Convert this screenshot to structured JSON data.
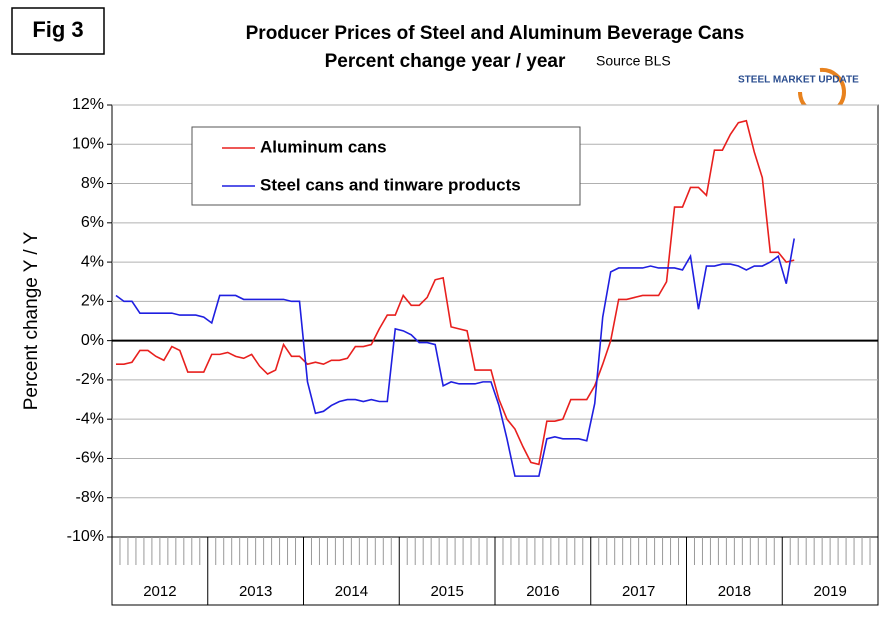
{
  "fig_label": "Fig 3",
  "logo": "STEEL MARKET UPDATE",
  "chart_data": {
    "type": "line",
    "title": "Producer Prices of Steel and Aluminum Beverage Cans",
    "subtitle": "Percent change year / year",
    "source": "Source BLS",
    "y_label": "Percent change Y / Y",
    "categories": [
      null,
      null,
      null,
      null,
      null,
      null,
      "2012",
      null,
      null,
      null,
      null,
      null,
      null,
      null,
      null,
      null,
      null,
      null,
      "2013",
      null,
      null,
      null,
      null,
      null,
      null,
      null,
      null,
      null,
      null,
      null,
      "2014",
      null,
      null,
      null,
      null,
      null,
      null,
      null,
      null,
      null,
      null,
      null,
      "2015",
      null,
      null,
      null,
      null,
      null,
      null,
      null,
      null,
      null,
      null,
      null,
      "2016",
      null,
      null,
      null,
      null,
      null,
      null,
      null,
      null,
      null,
      null,
      null,
      "2017",
      null,
      null,
      null,
      null,
      null,
      null,
      null,
      null,
      null,
      null,
      null,
      "2018",
      null,
      null,
      null,
      null,
      null,
      null,
      null,
      null,
      null,
      null,
      null,
      "2019",
      null,
      null,
      null,
      null,
      null
    ],
    "series": [
      {
        "name": "Aluminum cans",
        "color": "#e8201e",
        "values": [
          -1.2,
          -1.2,
          -1.1,
          -0.5,
          -0.5,
          -0.8,
          -1.0,
          -0.3,
          -0.5,
          -1.6,
          -1.6,
          -1.6,
          -0.7,
          -0.7,
          -0.6,
          -0.8,
          -0.9,
          -0.7,
          -1.3,
          -1.7,
          -1.5,
          -0.2,
          -0.8,
          -0.8,
          -1.2,
          -1.1,
          -1.2,
          -1.0,
          -1.0,
          -0.9,
          -0.3,
          -0.3,
          -0.2,
          0.6,
          1.3,
          1.3,
          2.3,
          1.8,
          1.8,
          2.2,
          3.1,
          3.2,
          0.7,
          0.6,
          0.5,
          -1.5,
          -1.5,
          -1.5,
          -3.0,
          -4.0,
          -4.5,
          -5.4,
          -6.2,
          -6.3,
          -4.1,
          -4.1,
          -4.0,
          -3.0,
          -3.0,
          -3.0,
          -2.3,
          -1.2,
          0.0,
          2.1,
          2.1,
          2.2,
          2.3,
          2.3,
          2.3,
          3.0,
          6.8,
          6.8,
          7.8,
          7.8,
          7.4,
          9.7,
          9.7,
          10.5,
          11.1,
          11.2,
          9.6,
          8.3,
          4.5,
          4.5,
          4.0,
          4.1,
          null,
          null,
          null,
          null,
          null,
          null,
          null,
          null,
          null,
          null
        ]
      },
      {
        "name": "Steel cans and tinware products",
        "color": "#1f1fe0",
        "values": [
          2.3,
          2.0,
          2.0,
          1.4,
          1.4,
          1.4,
          1.4,
          1.4,
          1.3,
          1.3,
          1.3,
          1.2,
          0.9,
          2.3,
          2.3,
          2.3,
          2.1,
          2.1,
          2.1,
          2.1,
          2.1,
          2.1,
          2.0,
          2.0,
          -2.1,
          -3.7,
          -3.6,
          -3.3,
          -3.1,
          -3.0,
          -3.0,
          -3.1,
          -3.0,
          -3.1,
          -3.1,
          0.6,
          0.5,
          0.3,
          -0.1,
          -0.1,
          -0.2,
          -2.3,
          -2.1,
          -2.2,
          -2.2,
          -2.2,
          -2.1,
          -2.1,
          -3.3,
          -5.0,
          -6.9,
          -6.9,
          -6.9,
          -6.9,
          -5.0,
          -4.9,
          -5.0,
          -5.0,
          -5.0,
          -5.1,
          -3.2,
          1.2,
          3.5,
          3.7,
          3.7,
          3.7,
          3.7,
          3.8,
          3.7,
          3.7,
          3.7,
          3.6,
          4.3,
          1.6,
          3.8,
          3.8,
          3.9,
          3.9,
          3.8,
          3.6,
          3.8,
          3.8,
          4.0,
          4.3,
          2.9,
          5.2,
          null,
          null,
          null,
          null,
          null,
          null,
          null,
          null,
          null,
          null
        ]
      }
    ],
    "ylim": [
      -10,
      12
    ],
    "yticks": [
      {
        "value": -10,
        "label": "-10%"
      },
      {
        "value": -8,
        "label": "-8%"
      },
      {
        "value": -6,
        "label": "-6%"
      },
      {
        "value": -4,
        "label": "-4%"
      },
      {
        "value": -2,
        "label": "-2%"
      },
      {
        "value": 0,
        "label": "0%"
      },
      {
        "value": 2,
        "label": "2%"
      },
      {
        "value": 4,
        "label": "4%"
      },
      {
        "value": 6,
        "label": "6%"
      },
      {
        "value": 8,
        "label": "8%"
      },
      {
        "value": 10,
        "label": "10%"
      },
      {
        "value": 12,
        "label": "12%"
      }
    ],
    "grid": true
  }
}
